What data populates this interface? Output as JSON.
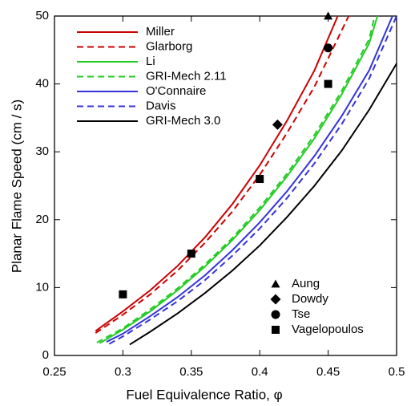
{
  "chart_data": {
    "type": "line",
    "xlabel": "Fuel Equivalence Ratio, φ",
    "ylabel": "Planar Flame Speed (cm / s)",
    "xlim": [
      0.25,
      0.5
    ],
    "xticks": [
      0.25,
      0.3,
      0.35,
      0.4,
      0.45,
      0.5
    ],
    "ylim": [
      0,
      50
    ],
    "yticks": [
      0,
      10,
      20,
      30,
      40,
      50
    ],
    "series": [
      {
        "name": "Miller",
        "color": "#cc0000",
        "dash": false,
        "x": [
          0.28,
          0.3,
          0.32,
          0.34,
          0.36,
          0.38,
          0.4,
          0.42,
          0.44,
          0.457
        ],
        "values": [
          3.6,
          6.5,
          9.6,
          13.2,
          17.4,
          22.3,
          28,
          34.6,
          42,
          50
        ]
      },
      {
        "name": "Glarborg",
        "color": "#cc0000",
        "dash": true,
        "x": [
          0.28,
          0.3,
          0.32,
          0.34,
          0.36,
          0.38,
          0.4,
          0.42,
          0.44,
          0.465
        ],
        "values": [
          3.3,
          6,
          9,
          12.5,
          16.6,
          21.2,
          26.6,
          32.8,
          39.6,
          50
        ]
      },
      {
        "name": "Li",
        "color": "#22cc22",
        "dash": false,
        "x": [
          0.283,
          0.3,
          0.32,
          0.34,
          0.36,
          0.38,
          0.4,
          0.42,
          0.44,
          0.46,
          0.48,
          0.486
        ],
        "values": [
          1.8,
          3.8,
          6.5,
          9.6,
          13.1,
          17,
          21.4,
          26.4,
          32,
          38.5,
          46,
          50
        ]
      },
      {
        "name": "GRI-Mech 2.11",
        "color": "#22cc22",
        "dash": true,
        "x": [
          0.281,
          0.3,
          0.32,
          0.34,
          0.36,
          0.38,
          0.4,
          0.42,
          0.44,
          0.46,
          0.48,
          0.484
        ],
        "values": [
          1.9,
          4,
          6.8,
          9.9,
          13.4,
          17.3,
          21.8,
          26.8,
          32.5,
          39,
          46.6,
          50
        ]
      },
      {
        "name": "O'Connaire",
        "color": "#3333dd",
        "dash": false,
        "x": [
          0.288,
          0.3,
          0.32,
          0.34,
          0.36,
          0.38,
          0.4,
          0.42,
          0.44,
          0.46,
          0.48,
          0.497
        ],
        "values": [
          2,
          3.2,
          5.8,
          8.6,
          11.8,
          15.5,
          19.6,
          24.2,
          29.4,
          35.3,
          42,
          50
        ]
      },
      {
        "name": "Davis",
        "color": "#3333dd",
        "dash": true,
        "x": [
          0.29,
          0.3,
          0.32,
          0.34,
          0.36,
          0.38,
          0.4,
          0.42,
          0.44,
          0.46,
          0.48,
          0.5
        ],
        "values": [
          1.7,
          2.8,
          5.3,
          8,
          11.1,
          14.7,
          18.7,
          23.2,
          28.3,
          34.1,
          40.8,
          50
        ]
      },
      {
        "name": "GRI-Mech 3.0",
        "color": "#000000",
        "dash": false,
        "x": [
          0.305,
          0.32,
          0.34,
          0.36,
          0.38,
          0.4,
          0.42,
          0.44,
          0.46,
          0.48,
          0.5
        ],
        "values": [
          1.6,
          3.5,
          6.2,
          9.2,
          12.5,
          16.2,
          20.4,
          25,
          30.2,
          36.2,
          43
        ]
      },
      {
        "name": "Aung",
        "color": "#000000",
        "marker": "triangle",
        "x": [
          0.45
        ],
        "values": [
          50
        ]
      },
      {
        "name": "Dowdy",
        "color": "#000000",
        "marker": "diamond",
        "x": [
          0.413
        ],
        "values": [
          34
        ]
      },
      {
        "name": "Tse",
        "color": "#000000",
        "marker": "circle",
        "x": [
          0.45
        ],
        "values": [
          45.3
        ]
      },
      {
        "name": "Vagelopoulos",
        "color": "#000000",
        "marker": "square",
        "x": [
          0.3,
          0.35,
          0.4,
          0.45
        ],
        "values": [
          9,
          15,
          26,
          40
        ]
      }
    ]
  }
}
